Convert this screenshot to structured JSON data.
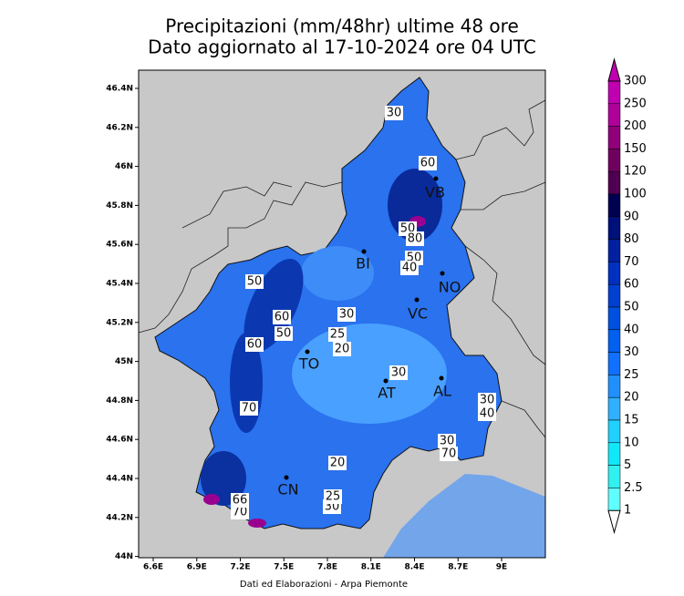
{
  "header": {
    "title": [
      "Precipitazioni (mm/48hr) ultime 48 ore",
      "Dato aggiornato al 17-10-2024 ore 04 UTC"
    ]
  },
  "map": {
    "lat_ticks": [
      "46.4N",
      "46.2N",
      "46N",
      "45.8N",
      "45.6N",
      "45.4N",
      "45.2N",
      "45N",
      "44.8N",
      "44.6N",
      "44.4N",
      "44.2N",
      "44N"
    ],
    "lon_ticks": [
      "6.6E",
      "6.9E",
      "7.2E",
      "7.5E",
      "7.8E",
      "8.1E",
      "8.4E",
      "8.7E",
      "9E"
    ],
    "cities": [
      "VB",
      "BI",
      "NO",
      "VC",
      "TO",
      "AT",
      "AL",
      "CN"
    ],
    "contour_labels": [
      "30",
      "60",
      "50",
      "80",
      "50",
      "40",
      "50",
      "60",
      "50",
      "30",
      "25",
      "20",
      "30",
      "60",
      "70",
      "70",
      "30",
      "40",
      "30",
      "20",
      "25",
      "30",
      "66",
      "70"
    ]
  },
  "legend": {
    "levels": [
      300,
      250,
      200,
      150,
      120,
      100,
      90,
      80,
      70,
      60,
      50,
      40,
      30,
      25,
      20,
      15,
      10,
      5,
      2.5,
      1
    ],
    "colors": [
      "#c000b0",
      "#b0009a",
      "#90007a",
      "#700060",
      "#500050",
      "#000050",
      "#00107a",
      "#0020a0",
      "#0030c0",
      "#0040d0",
      "#0050e0",
      "#0060f0",
      "#1070ff",
      "#2090ff",
      "#30b0ff",
      "#20d0ff",
      "#10e8f8",
      "#30f0f0",
      "#60ffff"
    ]
  },
  "footer": "Dati ed Elaborazioni - Arpa Piemonte"
}
